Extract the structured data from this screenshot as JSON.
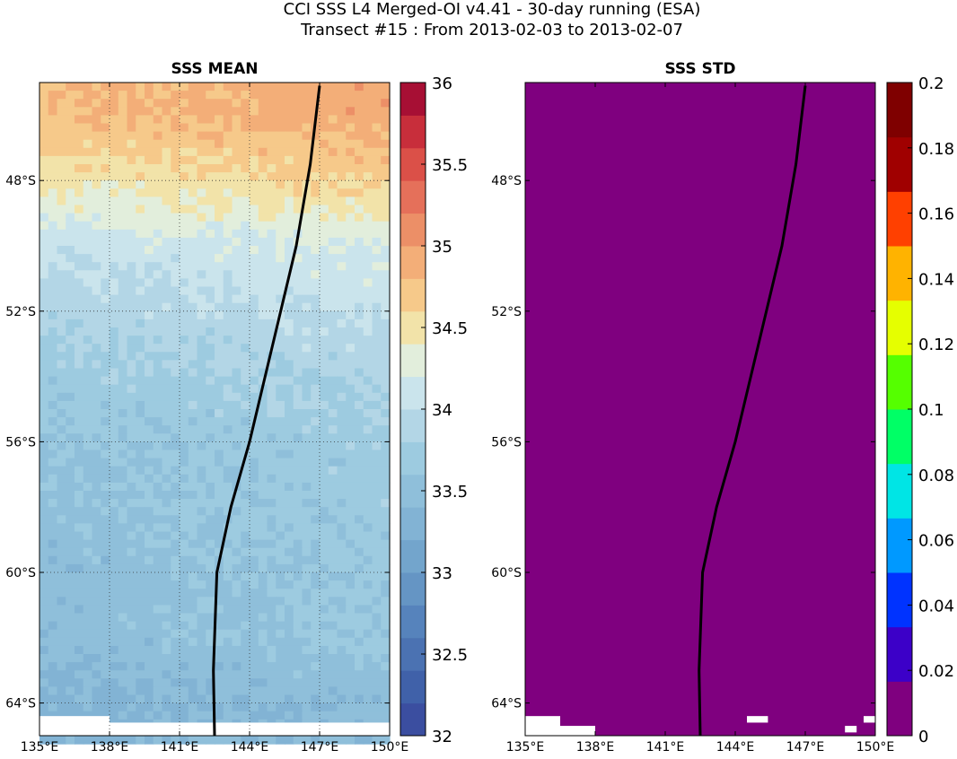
{
  "figure": {
    "title_line1": "CCI SSS L4 Merged-OI v4.41 - 30-day running (ESA)",
    "title_line2": "Transect #15 : From 2013-02-03 to 2013-02-07"
  },
  "chart_data": [
    {
      "type": "heatmap",
      "title": "SSS MEAN",
      "xlim": [
        135,
        150
      ],
      "ylim": [
        -65,
        -45
      ],
      "x_ticks": [
        135,
        138,
        141,
        144,
        147,
        150
      ],
      "x_tick_labels": [
        "135°E",
        "138°E",
        "141°E",
        "144°E",
        "147°E",
        "150°E"
      ],
      "y_ticks": [
        -48,
        -52,
        -56,
        -60,
        -64
      ],
      "y_tick_labels": [
        "48°S",
        "52°S",
        "56°S",
        "60°S",
        "64°S"
      ],
      "grid": true,
      "colorbar": {
        "min": 32,
        "max": 36,
        "levels": 20,
        "ticks": [
          32,
          32.5,
          33,
          33.5,
          34,
          34.5,
          35,
          35.5,
          36
        ],
        "tick_labels": [
          "32",
          "32.5",
          "33",
          "33.5",
          "34",
          "34.5",
          "35",
          "35.5",
          "36"
        ],
        "colors": [
          "#3b4ea0",
          "#4061a9",
          "#4b72b2",
          "#5683bc",
          "#6595c4",
          "#73a5cc",
          "#82b3d4",
          "#8fbfda",
          "#9dcbe0",
          "#b3d6e6",
          "#cae4ec",
          "#e2eedc",
          "#f2e3a9",
          "#f6c98a",
          "#f3ae78",
          "#ec8f67",
          "#e5705a",
          "#db5048",
          "#c82e3b",
          "#a70f34"
        ]
      },
      "field_summary": [
        {
          "lat": -46,
          "value": 34.85
        },
        {
          "lat": -48,
          "value": 34.55
        },
        {
          "lat": -50,
          "value": 34.15
        },
        {
          "lat": -52,
          "value": 33.95
        },
        {
          "lat": -54,
          "value": 33.78
        },
        {
          "lat": -56,
          "value": 33.65
        },
        {
          "lat": -58,
          "value": 33.62
        },
        {
          "lat": -60,
          "value": 33.55
        },
        {
          "lat": -62,
          "value": 33.55
        },
        {
          "lat": -64,
          "value": 33.4
        }
      ],
      "transect": {
        "lon": [
          142.5,
          142.45,
          142.6,
          143.2,
          144.0,
          145.0,
          146.0,
          146.6,
          147.0
        ],
        "lat": [
          -65.0,
          -63.0,
          -60.0,
          -58.0,
          -56.0,
          -53.0,
          -50.0,
          -47.5,
          -45.1
        ]
      },
      "land_mask": [
        {
          "lon": [
            135,
            138.0
          ],
          "lat": [
            -65,
            -64.4
          ]
        },
        {
          "lon": [
            138.0,
            150
          ],
          "lat": [
            -65,
            -64.6
          ]
        }
      ]
    },
    {
      "type": "heatmap",
      "title": "SSS STD",
      "xlim": [
        135,
        150
      ],
      "ylim": [
        -65,
        -45
      ],
      "x_ticks": [
        135,
        138,
        141,
        144,
        147,
        150
      ],
      "x_tick_labels": [
        "135°E",
        "138°E",
        "141°E",
        "144°E",
        "147°E",
        "150°E"
      ],
      "y_ticks": [
        -48,
        -52,
        -56,
        -60,
        -64
      ],
      "y_tick_labels": [
        "48°S",
        "52°S",
        "56°S",
        "60°S",
        "64°S"
      ],
      "grid": false,
      "field_value": 0,
      "colorbar": {
        "min": 0,
        "max": 0.2,
        "ticks": [
          0,
          0.02,
          0.04,
          0.06,
          0.08,
          0.1,
          0.12,
          0.14,
          0.16,
          0.18,
          0.2
        ],
        "tick_labels": [
          "0",
          "0.02",
          "0.04",
          "0.06",
          "0.08",
          "0.1",
          "0.12",
          "0.14",
          "0.16",
          "0.18",
          "0.2"
        ],
        "colors": [
          "#7f007f",
          "#3c00c8",
          "#0033ff",
          "#0099ff",
          "#00e5e5",
          "#00ff66",
          "#55ff00",
          "#e5ff00",
          "#ffb300",
          "#ff4000",
          "#a00000",
          "#7f0000"
        ]
      },
      "transect": {
        "lon": [
          142.5,
          142.45,
          142.6,
          143.2,
          144.0,
          145.0,
          146.0,
          146.6,
          147.0
        ],
        "lat": [
          -65.0,
          -63.0,
          -60.0,
          -58.0,
          -56.0,
          -53.0,
          -50.0,
          -47.5,
          -45.1
        ]
      },
      "land_mask": [
        {
          "lon": [
            135,
            136.5
          ],
          "lat": [
            -65,
            -64.4
          ]
        },
        {
          "lon": [
            136.5,
            138.0
          ],
          "lat": [
            -65,
            -64.7
          ]
        },
        {
          "lon": [
            144.5,
            145.4
          ],
          "lat": [
            -64.6,
            -64.4
          ]
        },
        {
          "lon": [
            148.7,
            149.2
          ],
          "lat": [
            -64.9,
            -64.7
          ]
        },
        {
          "lon": [
            149.5,
            150
          ],
          "lat": [
            -64.6,
            -64.4
          ]
        }
      ]
    }
  ]
}
